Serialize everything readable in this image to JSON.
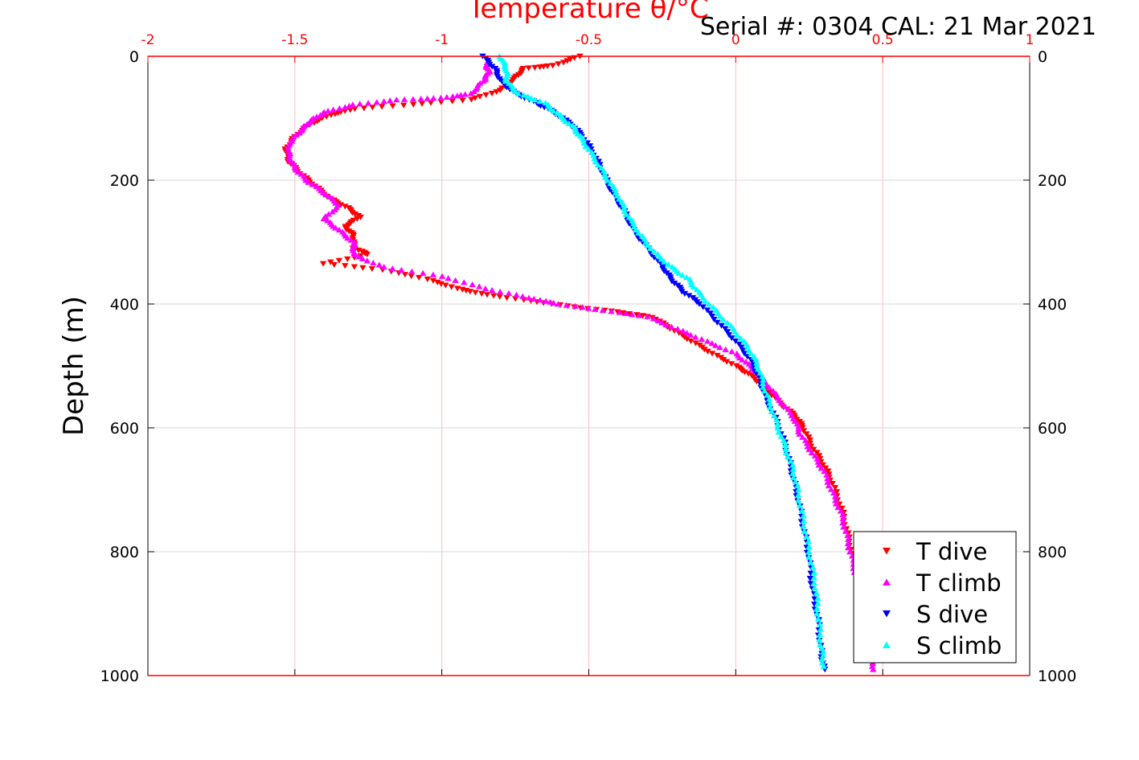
{
  "header": {
    "serial_text": "Serial #: 0304  CAL: 21 Mar 2021"
  },
  "colors": {
    "t_dive": "#ff0000",
    "t_climb": "#ff00ff",
    "s_dive": "#0000ff",
    "s_climb": "#00ffff",
    "top_axis": "#ff0000",
    "left_axis": "#000000",
    "grid": "#d9d9d9",
    "grid_top": "#ffc0c0"
  },
  "chart_data": {
    "type": "scatter",
    "title": "Temperature θ/°C",
    "xlabel": "Temperature θ/°C",
    "ylabel": "Depth (m)",
    "xlim": [
      -2,
      1
    ],
    "ylim": [
      0,
      1000
    ],
    "y_reversed": true,
    "x_axis_position": "top",
    "grid": true,
    "legend_position": "bottom-right",
    "x_ticks": [
      -2,
      -1.5,
      -1,
      -0.5,
      0,
      0.5,
      1
    ],
    "x_tick_labels": [
      "-2",
      "-1.5",
      "-1",
      "-0.5",
      "0",
      "0.5",
      "1"
    ],
    "y_ticks": [
      0,
      200,
      400,
      600,
      800,
      1000
    ],
    "y_tick_labels": [
      "0",
      "200",
      "400",
      "600",
      "800",
      "1000"
    ],
    "series": [
      {
        "name": "T dive",
        "marker": "triangle-down",
        "color": "#ff0000",
        "points": [
          [
            -0.53,
            0
          ],
          [
            -0.62,
            15
          ],
          [
            -0.72,
            20
          ],
          [
            -0.75,
            35
          ],
          [
            -0.8,
            55
          ],
          [
            -0.9,
            70
          ],
          [
            -1.1,
            78
          ],
          [
            -1.3,
            85
          ],
          [
            -1.38,
            95
          ],
          [
            -1.45,
            110
          ],
          [
            -1.5,
            130
          ],
          [
            -1.53,
            150
          ],
          [
            -1.52,
            170
          ],
          [
            -1.48,
            190
          ],
          [
            -1.43,
            210
          ],
          [
            -1.38,
            230
          ],
          [
            -1.32,
            245
          ],
          [
            -1.28,
            260
          ],
          [
            -1.33,
            275
          ],
          [
            -1.3,
            290
          ],
          [
            -1.3,
            310
          ],
          [
            -1.25,
            320
          ],
          [
            -1.4,
            335
          ],
          [
            -1.2,
            345
          ],
          [
            -1.05,
            360
          ],
          [
            -0.95,
            375
          ],
          [
            -0.85,
            385
          ],
          [
            -0.7,
            395
          ],
          [
            -0.55,
            405
          ],
          [
            -0.4,
            413
          ],
          [
            -0.28,
            422
          ],
          [
            -0.22,
            440
          ],
          [
            -0.15,
            460
          ],
          [
            -0.08,
            480
          ],
          [
            0.0,
            500
          ],
          [
            0.05,
            515
          ],
          [
            0.1,
            535
          ],
          [
            0.15,
            560
          ],
          [
            0.2,
            580
          ],
          [
            0.23,
            600
          ],
          [
            0.26,
            630
          ],
          [
            0.3,
            660
          ],
          [
            0.33,
            690
          ],
          [
            0.36,
            730
          ],
          [
            0.38,
            770
          ],
          [
            0.4,
            810
          ],
          [
            0.42,
            850
          ],
          [
            0.44,
            900
          ],
          [
            0.46,
            950
          ],
          [
            0.47,
            985
          ]
        ]
      },
      {
        "name": "T climb",
        "marker": "triangle-up",
        "color": "#ff00ff",
        "points": [
          [
            -0.85,
            10
          ],
          [
            -0.84,
            25
          ],
          [
            -0.86,
            40
          ],
          [
            -0.9,
            60
          ],
          [
            -1.0,
            67
          ],
          [
            -1.15,
            70
          ],
          [
            -1.3,
            78
          ],
          [
            -1.4,
            90
          ],
          [
            -1.45,
            105
          ],
          [
            -1.48,
            120
          ],
          [
            -1.52,
            140
          ],
          [
            -1.52,
            160
          ],
          [
            -1.5,
            180
          ],
          [
            -1.46,
            200
          ],
          [
            -1.4,
            220
          ],
          [
            -1.35,
            240
          ],
          [
            -1.4,
            262
          ],
          [
            -1.35,
            280
          ],
          [
            -1.3,
            300
          ],
          [
            -1.3,
            320
          ],
          [
            -1.2,
            340
          ],
          [
            -1.0,
            355
          ],
          [
            -0.85,
            375
          ],
          [
            -0.7,
            390
          ],
          [
            -0.6,
            400
          ],
          [
            -0.45,
            410
          ],
          [
            -0.3,
            420
          ],
          [
            -0.2,
            440
          ],
          [
            -0.1,
            460
          ],
          [
            0.0,
            480
          ],
          [
            0.05,
            500
          ],
          [
            0.1,
            525
          ],
          [
            0.15,
            555
          ],
          [
            0.2,
            585
          ],
          [
            0.22,
            610
          ],
          [
            0.26,
            640
          ],
          [
            0.3,
            670
          ],
          [
            0.33,
            705
          ],
          [
            0.36,
            740
          ],
          [
            0.38,
            780
          ],
          [
            0.4,
            820
          ],
          [
            0.42,
            860
          ],
          [
            0.44,
            910
          ],
          [
            0.46,
            960
          ],
          [
            0.47,
            990
          ]
        ]
      },
      {
        "name": "S dive",
        "marker": "triangle-down",
        "color": "#0000ff",
        "points": [
          [
            -0.86,
            0
          ],
          [
            -0.82,
            20
          ],
          [
            -0.8,
            40
          ],
          [
            -0.75,
            60
          ],
          [
            -0.68,
            75
          ],
          [
            -0.62,
            90
          ],
          [
            -0.56,
            110
          ],
          [
            -0.52,
            130
          ],
          [
            -0.48,
            160
          ],
          [
            -0.45,
            190
          ],
          [
            -0.42,
            220
          ],
          [
            -0.38,
            250
          ],
          [
            -0.35,
            280
          ],
          [
            -0.3,
            310
          ],
          [
            -0.25,
            340
          ],
          [
            -0.22,
            360
          ],
          [
            -0.18,
            380
          ],
          [
            -0.12,
            400
          ],
          [
            -0.06,
            430
          ],
          [
            0.0,
            460
          ],
          [
            0.05,
            490
          ],
          [
            0.08,
            520
          ],
          [
            0.1,
            550
          ],
          [
            0.14,
            590
          ],
          [
            0.17,
            630
          ],
          [
            0.19,
            670
          ],
          [
            0.21,
            710
          ],
          [
            0.23,
            760
          ],
          [
            0.25,
            810
          ],
          [
            0.26,
            860
          ],
          [
            0.28,
            910
          ],
          [
            0.29,
            960
          ],
          [
            0.3,
            990
          ]
        ]
      },
      {
        "name": "S climb",
        "marker": "triangle-up",
        "color": "#00ffff",
        "points": [
          [
            -0.8,
            0
          ],
          [
            -0.78,
            20
          ],
          [
            -0.78,
            40
          ],
          [
            -0.74,
            60
          ],
          [
            -0.65,
            75
          ],
          [
            -0.6,
            95
          ],
          [
            -0.55,
            115
          ],
          [
            -0.52,
            135
          ],
          [
            -0.48,
            165
          ],
          [
            -0.44,
            195
          ],
          [
            -0.4,
            225
          ],
          [
            -0.37,
            255
          ],
          [
            -0.33,
            285
          ],
          [
            -0.28,
            315
          ],
          [
            -0.22,
            340
          ],
          [
            -0.16,
            360
          ],
          [
            -0.12,
            385
          ],
          [
            -0.06,
            415
          ],
          [
            0.0,
            445
          ],
          [
            0.05,
            475
          ],
          [
            0.08,
            505
          ],
          [
            0.1,
            540
          ],
          [
            0.13,
            580
          ],
          [
            0.16,
            620
          ],
          [
            0.19,
            660
          ],
          [
            0.21,
            700
          ],
          [
            0.23,
            750
          ],
          [
            0.25,
            800
          ],
          [
            0.27,
            850
          ],
          [
            0.28,
            900
          ],
          [
            0.29,
            950
          ],
          [
            0.3,
            985
          ]
        ]
      }
    ]
  }
}
